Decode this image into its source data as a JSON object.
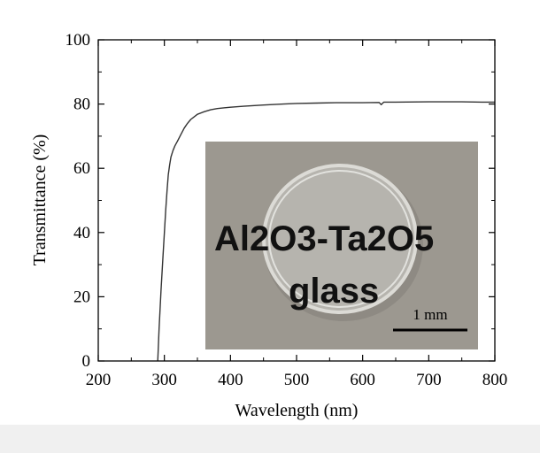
{
  "chart_data": {
    "type": "line",
    "title": "",
    "xlabel": "Wavelength  (nm)",
    "ylabel": "Transmittance (%)",
    "xlim": [
      200,
      800
    ],
    "ylim": [
      0,
      100
    ],
    "xticks": [
      200,
      300,
      400,
      500,
      600,
      700,
      800
    ],
    "yticks": [
      0,
      20,
      40,
      60,
      80,
      100
    ],
    "grid": false,
    "series": [
      {
        "color": "#333333",
        "x": [
          290,
          292,
          295,
          298,
          300,
          302,
          304,
          306,
          308,
          310,
          313,
          316,
          320,
          325,
          330,
          335,
          340,
          345,
          350,
          360,
          370,
          380,
          400,
          420,
          450,
          480,
          500,
          530,
          560,
          600,
          625,
          628,
          632,
          650,
          700,
          750,
          780,
          800
        ],
        "y": [
          0,
          10,
          22,
          33,
          40,
          47,
          53,
          58,
          61,
          63.5,
          65.5,
          67,
          68.5,
          70.5,
          72.5,
          74,
          75.2,
          76,
          76.8,
          77.6,
          78.2,
          78.6,
          79,
          79.3,
          79.7,
          80,
          80.2,
          80.3,
          80.4,
          80.4,
          80.5,
          79.8,
          80.6,
          80.6,
          80.7,
          80.7,
          80.6,
          80.6
        ]
      }
    ]
  },
  "inset_photo": {
    "sample_label_line1": "Al2O3-Ta2O5",
    "sample_label_line2": "glass",
    "scale_bar_label": "1 mm"
  }
}
